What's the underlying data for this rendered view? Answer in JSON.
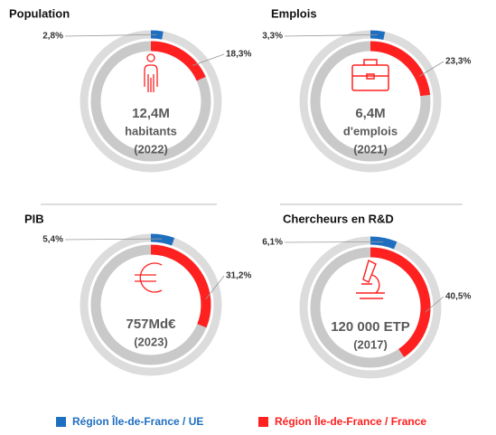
{
  "chart_data": [
    {
      "type": "donut",
      "title": "Population",
      "values": [
        2.8,
        18.3
      ],
      "value_labels": [
        "2,8%",
        "18,3%"
      ],
      "center_text": [
        "12,4M",
        "habitants",
        "(2022)"
      ]
    },
    {
      "type": "donut",
      "title": "Emplois",
      "values": [
        3.3,
        23.3
      ],
      "value_labels": [
        "3,3%",
        "23,3%"
      ],
      "center_text": [
        "6,4M",
        "d'emplois",
        "(2021)"
      ]
    },
    {
      "type": "donut",
      "title": "PIB",
      "values": [
        5.4,
        31.2
      ],
      "value_labels": [
        "5,4%",
        "31,2%"
      ],
      "center_text": [
        "757Md€",
        "(2023)"
      ]
    },
    {
      "type": "donut",
      "title": "Chercheurs en R&D",
      "values": [
        6.1,
        40.5
      ],
      "value_labels": [
        "6,1%",
        "40,5%"
      ],
      "center_text": [
        "120 000 ETP",
        "(2017)"
      ]
    }
  ],
  "legend": [
    {
      "name": "Région Île-de-France / UE",
      "color": "#1f6fc0"
    },
    {
      "name": "Région Île-de-France / France",
      "color": "#ff2020"
    }
  ]
}
